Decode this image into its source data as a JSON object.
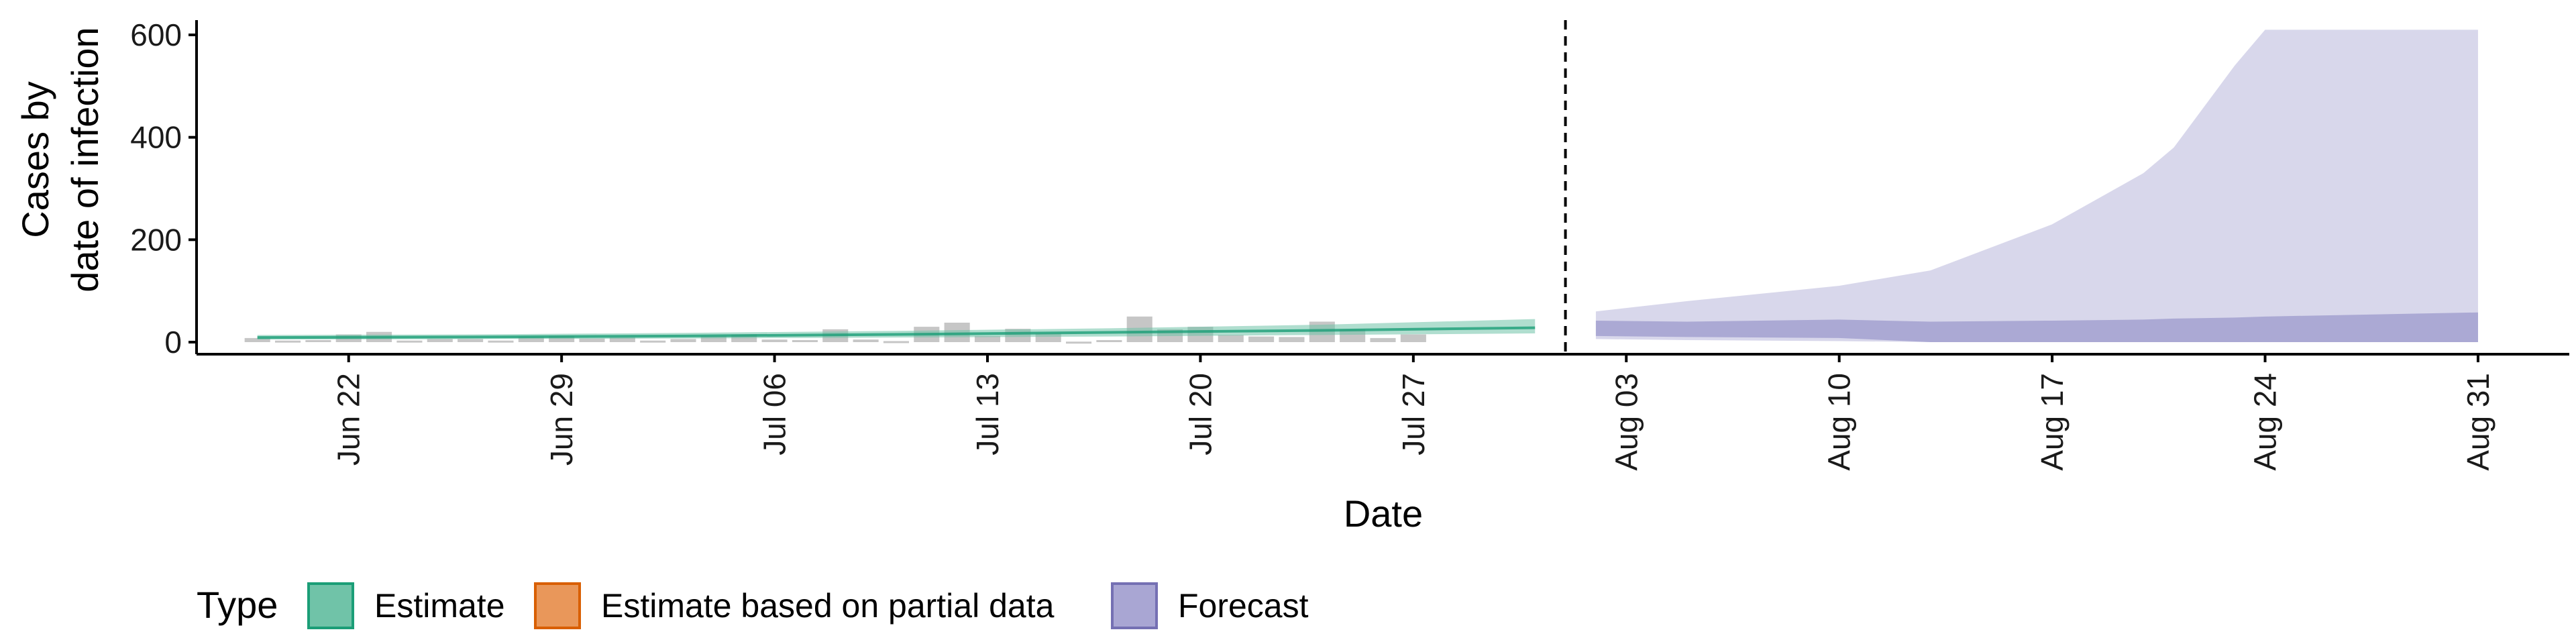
{
  "chart_data": {
    "type": "area",
    "ylabel_lines": [
      "Cases by",
      "date of infection"
    ],
    "xlabel": "Date",
    "ylim": [
      0,
      640
    ],
    "yticks": [
      0,
      200,
      400,
      600
    ],
    "xrange": [
      "2020-06-17",
      "2020-09-03"
    ],
    "xticks": [
      {
        "date": "2020-06-22",
        "label": "Jun 22"
      },
      {
        "date": "2020-06-29",
        "label": "Jun 29"
      },
      {
        "date": "2020-07-06",
        "label": "Jul 06"
      },
      {
        "date": "2020-07-13",
        "label": "Jul 13"
      },
      {
        "date": "2020-07-20",
        "label": "Jul 20"
      },
      {
        "date": "2020-07-27",
        "label": "Jul 27"
      },
      {
        "date": "2020-08-03",
        "label": "Aug 03"
      },
      {
        "date": "2020-08-10",
        "label": "Aug 10"
      },
      {
        "date": "2020-08-17",
        "label": "Aug 17"
      },
      {
        "date": "2020-08-24",
        "label": "Aug 24"
      },
      {
        "date": "2020-08-31",
        "label": "Aug 31"
      }
    ],
    "forecast_start_line": "2020-08-01",
    "reported_cases": {
      "start_date": "2020-06-19",
      "values": [
        8,
        3,
        4,
        15,
        20,
        3,
        6,
        6,
        3,
        10,
        12,
        7,
        9,
        3,
        6,
        12,
        15,
        5,
        4,
        25,
        5,
        2,
        30,
        38,
        12,
        26,
        17,
        1,
        4,
        50,
        25,
        30,
        14,
        11,
        10,
        40,
        25,
        8,
        15
      ]
    },
    "series": [
      {
        "name": "Estimate",
        "color": "#1b9e77",
        "fill": "#70c3a8",
        "dates": [
          "2020-06-19",
          "2020-06-26",
          "2020-07-03",
          "2020-07-10",
          "2020-07-17",
          "2020-07-24",
          "2020-07-31"
        ],
        "median": [
          9,
          10,
          12,
          15,
          19,
          23,
          28
        ],
        "lower": [
          5,
          6,
          7,
          9,
          11,
          14,
          17
        ],
        "upper": [
          14,
          15,
          18,
          22,
          27,
          34,
          45
        ]
      },
      {
        "name": "Forecast",
        "color": "#7570b3",
        "fill": "#a9a6d3",
        "dates": [
          "2020-08-02",
          "2020-08-05",
          "2020-08-10",
          "2020-08-13",
          "2020-08-17",
          "2020-08-20",
          "2020-08-21",
          "2020-08-23",
          "2020-08-24",
          "2020-08-31"
        ],
        "inner_lower": [
          12,
          10,
          8,
          0,
          0,
          0,
          0,
          0,
          0,
          0
        ],
        "inner_upper": [
          42,
          40,
          44,
          40,
          42,
          44,
          46,
          48,
          50,
          58
        ],
        "outer_lower": [
          6,
          4,
          2,
          0,
          0,
          0,
          0,
          0,
          0,
          0
        ],
        "outer_upper": [
          60,
          80,
          110,
          140,
          230,
          330,
          380,
          540,
          610,
          610
        ]
      }
    ],
    "legend": {
      "title": "Type",
      "position": "bottom-left",
      "items": [
        {
          "label": "Estimate",
          "fill": "#70c3a8",
          "border": "#1b9e77"
        },
        {
          "label": "Estimate based on partial data",
          "fill": "#e9975a",
          "border": "#d95f02"
        },
        {
          "label": "Forecast",
          "fill": "#a9a6d3",
          "border": "#7570b3"
        }
      ]
    }
  }
}
